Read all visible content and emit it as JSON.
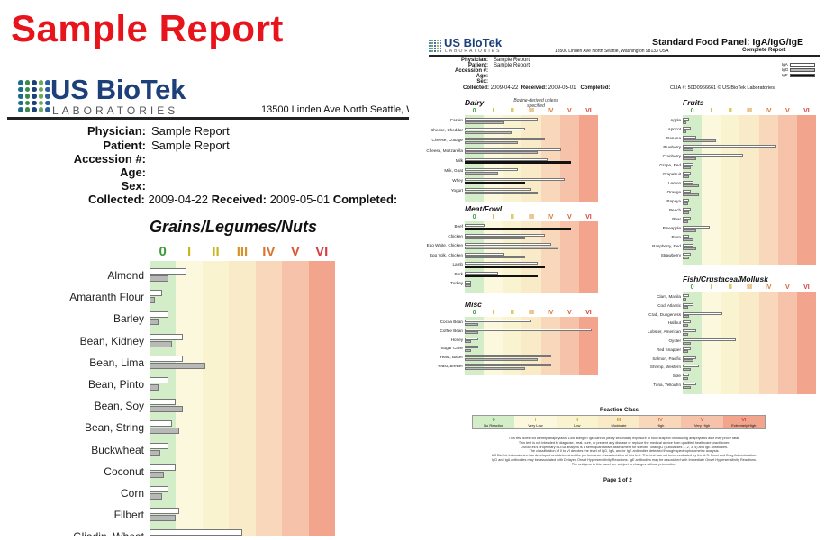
{
  "slide": {
    "title": "Sample Report"
  },
  "logo": {
    "name": "US BioTek",
    "sub": "LABORATORIES"
  },
  "zoom": {
    "address": "13500 Linden Ave North  Seattle, W",
    "info": [
      {
        "label": "Physician:",
        "value": "Sample Report"
      },
      {
        "label": "Patient:",
        "value": "Sample Report"
      },
      {
        "label": "Accession #:",
        "value": ""
      },
      {
        "label": "Age:",
        "value": ""
      },
      {
        "label": "Sex:",
        "value": ""
      }
    ],
    "collected": {
      "collected_label": "Collected:",
      "collected_value": "2009-04-22",
      "received_label": "Received:",
      "received_value": "2009-05-01",
      "completed_label": "Completed:"
    },
    "section_title": "Grains/Legumes/Nuts",
    "scale": [
      "0",
      "I",
      "II",
      "III",
      "IV",
      "V",
      "VI"
    ],
    "rows": [
      {
        "label": "Almond",
        "iga": 0.2,
        "igg": 0.1
      },
      {
        "label": "Amaranth Flour",
        "iga": 0.07,
        "igg": 0.03
      },
      {
        "label": "Barley",
        "iga": 0.1,
        "igg": 0.05
      },
      {
        "label": "Bean, Kidney",
        "iga": 0.18,
        "igg": 0.12
      },
      {
        "label": "Bean, Lima",
        "iga": 0.18,
        "igg": 0.3
      },
      {
        "label": "Bean, Pinto",
        "iga": 0.1,
        "igg": 0.05
      },
      {
        "label": "Bean, Soy",
        "iga": 0.14,
        "igg": 0.18
      },
      {
        "label": "Bean, String",
        "iga": 0.12,
        "igg": 0.16
      },
      {
        "label": "Buckwheat",
        "iga": 0.1,
        "igg": 0.06
      },
      {
        "label": "Coconut",
        "iga": 0.14,
        "igg": 0.08
      },
      {
        "label": "Corn",
        "iga": 0.1,
        "igg": 0.07
      },
      {
        "label": "Filbert",
        "iga": 0.16,
        "igg": 0.14
      },
      {
        "label": "Gliadin, Wheat",
        "iga": 0.5,
        "igg": 0.7
      }
    ]
  },
  "page": {
    "title": "Standard Food Panel: IgA/IgG/IgE",
    "subtitle": "Complete Report",
    "address": "13500 Linden Ave North  Seattle, Washington 98133 USA",
    "info": [
      {
        "label": "Physician:",
        "value": "Sample Report"
      },
      {
        "label": "Patient:",
        "value": "Sample Report"
      },
      {
        "label": "Accession #:",
        "value": ""
      },
      {
        "label": "Age:",
        "value": ""
      },
      {
        "label": "Sex:",
        "value": ""
      }
    ],
    "collected": {
      "collected_label": "Collected:",
      "collected_value": "2009-04-22",
      "received_label": "Received:",
      "received_value": "2009-05-01",
      "completed_label": "Completed:"
    },
    "clia": "CLIA #: 50D0966661 © US BioTek Laboratories",
    "legend": [
      "IgA",
      "IgG",
      "IgE"
    ],
    "scale": [
      "0",
      "I",
      "II",
      "III",
      "IV",
      "V",
      "VI"
    ],
    "sections": [
      {
        "title": "Dairy",
        "note": "Bovine-derived unless specified",
        "rows": [
          {
            "label": "Casein",
            "iga": 0.55,
            "igg": 0.3
          },
          {
            "label": "Cheese, Cheddar",
            "iga": 0.45,
            "igg": 0.35
          },
          {
            "label": "Cheese, Cottage",
            "iga": 0.6,
            "igg": 0.4
          },
          {
            "label": "Cheese, Mozzarella",
            "iga": 0.72,
            "igg": 0.55
          },
          {
            "label": "Milk",
            "iga": 0.62,
            "ige": 0.8
          },
          {
            "label": "Milk, Goat",
            "iga": 0.4,
            "igg": 0.25
          },
          {
            "label": "Whey",
            "iga": 0.75,
            "ige": 0.45
          },
          {
            "label": "Yogurt",
            "iga": 0.5,
            "igg": 0.55
          }
        ]
      },
      {
        "title": "Meat/Fowl",
        "note": "",
        "rows": [
          {
            "label": "Beef",
            "iga": 0.15,
            "ige": 0.8
          },
          {
            "label": "Chicken",
            "iga": 0.6,
            "igg": 0.45
          },
          {
            "label": "Egg White, Chicken",
            "iga": 0.65,
            "igg": 0.7
          },
          {
            "label": "Egg Yolk, Chicken",
            "iga": 0.3,
            "igg": 0.45
          },
          {
            "label": "Lamb",
            "iga": 0.55,
            "ige": 0.6
          },
          {
            "label": "Pork",
            "iga": 0.25,
            "ige": 0.55
          },
          {
            "label": "Turkey",
            "iga": 0.05,
            "igg": 0.05
          }
        ]
      },
      {
        "title": "Misc",
        "note": "",
        "rows": [
          {
            "label": "Cocoa Bean",
            "iga": 0.5,
            "igg": 0.1
          },
          {
            "label": "Coffee Bean",
            "iga": 0.95,
            "igg": 0.1
          },
          {
            "label": "Honey",
            "iga": 0.1,
            "igg": 0.05
          },
          {
            "label": "Sugar Cane",
            "iga": 0.1,
            "igg": 0.05
          },
          {
            "label": "Yeast, Baker",
            "iga": 0.65,
            "igg": 0.55
          },
          {
            "label": "Yeast, Brewer",
            "iga": 0.65,
            "igg": 0.45
          }
        ]
      },
      {
        "title": "Fruits",
        "note": "",
        "rows": [
          {
            "label": "Apple",
            "iga": 0.05,
            "igg": 0.03
          },
          {
            "label": "Apricot",
            "iga": 0.06,
            "igg": 0.03
          },
          {
            "label": "Banana",
            "iga": 0.1,
            "igg": 0.25
          },
          {
            "label": "Blueberry",
            "iga": 0.7,
            "igg": 0.08
          },
          {
            "label": "Cranberry",
            "iga": 0.45,
            "igg": 0.1
          },
          {
            "label": "Grape, Red",
            "iga": 0.08,
            "igg": 0.06
          },
          {
            "label": "Grapefruit",
            "iga": 0.06,
            "igg": 0.05
          },
          {
            "label": "Lemon",
            "iga": 0.08,
            "igg": 0.12
          },
          {
            "label": "Orange",
            "iga": 0.06,
            "igg": 0.12
          },
          {
            "label": "Papaya",
            "iga": 0.05,
            "igg": 0.04
          },
          {
            "label": "Peach",
            "iga": 0.06,
            "igg": 0.05
          },
          {
            "label": "Pear",
            "iga": 0.06,
            "igg": 0.04
          },
          {
            "label": "Pineapple",
            "iga": 0.2,
            "igg": 0.1
          },
          {
            "label": "Plum",
            "iga": 0.05,
            "igg": 0.08
          },
          {
            "label": "Raspberry, Red",
            "iga": 0.08,
            "igg": 0.1
          },
          {
            "label": "Strawberry",
            "iga": 0.06,
            "igg": 0.05
          }
        ]
      },
      {
        "title": "Fish/Crustacea/Mollusk",
        "note": "",
        "rows": [
          {
            "label": "Clam, Manila",
            "iga": 0.05,
            "igg": 0.03
          },
          {
            "label": "Cod, Atlantic",
            "iga": 0.08,
            "igg": 0.04
          },
          {
            "label": "Crab, Dungeness",
            "iga": 0.3,
            "igg": 0.05
          },
          {
            "label": "Halibut",
            "iga": 0.06,
            "igg": 0.04
          },
          {
            "label": "Lobster, American",
            "iga": 0.1,
            "igg": 0.04
          },
          {
            "label": "Oyster",
            "iga": 0.4,
            "igg": 0.06
          },
          {
            "label": "Red Snapper",
            "iga": 0.06,
            "igg": 0.04
          },
          {
            "label": "Salmon, Pacific",
            "iga": 0.1,
            "igg": 0.08
          },
          {
            "label": "Shrimp, Western",
            "iga": 0.12,
            "igg": 0.06
          },
          {
            "label": "Sole",
            "iga": 0.05,
            "igg": 0.04
          },
          {
            "label": "Tuna, Yellowfin",
            "iga": 0.1,
            "igg": 0.06
          }
        ]
      }
    ],
    "reaction_class": {
      "title": "Reaction Class",
      "items": [
        {
          "num": "0",
          "name": "No Reaction"
        },
        {
          "num": "I",
          "name": "Very Low"
        },
        {
          "num": "II",
          "name": "Low"
        },
        {
          "num": "III",
          "name": "Moderate"
        },
        {
          "num": "IV",
          "name": "High"
        },
        {
          "num": "V",
          "name": "Very High"
        },
        {
          "num": "VI",
          "name": "Extremely High"
        }
      ]
    },
    "disclaimer": [
      "This test does not identify anaphylaxis. Low allergen IgE cannot justify secondary exposure to food suspect of inducing anaphylaxis as it may prove fatal.",
      "This test is not intended to diagnose, treat, cure, or prevent any disease or replace the medical advice from qualified healthcare practitioner.",
      "USBioTek's proprietary ELISA analysis is a semi-quantitative assessment for specific Total IgG (subclasses 1, 2, 3, 4) and IgE antibodies.",
      "The classification of 0 to VI denotes the level of IgG, IgA, and/or IgE antibodies detected through spectrophotometric analysis.",
      "US BioTek Laboratories has developed and determined the performance characteristics of this test. This test has not been evaluated by the U.S. Food and Drug Administration.",
      "IgG and IgA antibodies may be associated with Delayed Onset Hypersensitivity Reactions. IgE antibodies may be associated with Immediate Onset Hypersensitivity Reactions.",
      "The antigens in this panel are subject to changes without prior notice."
    ],
    "page_label": "Page 1 of 2"
  },
  "colors": {
    "title_red": "#e8141c",
    "brand_blue": "#1d3f7a",
    "zone": [
      "#d4edc9",
      "#fbf8dd",
      "#faf3cf",
      "#f9ebc7",
      "#f8d7bb",
      "#f6c2a9",
      "#f2a48c"
    ],
    "scale_text": [
      "#3f9a3c",
      "#c9b31e",
      "#c9b31e",
      "#d6922a",
      "#d9742f",
      "#d65a3a",
      "#d23f3f"
    ],
    "logo_dots": [
      "#1d6b8f",
      "#3a8a4c",
      "#1d3f7a",
      "#6ba85a",
      "#2b5e9e"
    ]
  }
}
